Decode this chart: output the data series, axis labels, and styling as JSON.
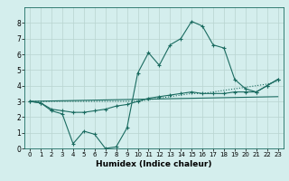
{
  "title": "",
  "xlabel": "Humidex (Indice chaleur)",
  "xlim": [
    -0.5,
    23.5
  ],
  "ylim": [
    0,
    9
  ],
  "xticks": [
    0,
    1,
    2,
    3,
    4,
    5,
    6,
    7,
    8,
    9,
    10,
    11,
    12,
    13,
    14,
    15,
    16,
    17,
    18,
    19,
    20,
    21,
    22,
    23
  ],
  "yticks": [
    0,
    1,
    2,
    3,
    4,
    5,
    6,
    7,
    8
  ],
  "bg_color": "#d4eeed",
  "grid_color": "#b8d4d0",
  "line_color": "#1a6b60",
  "line1_x": [
    0,
    1,
    2,
    3,
    4,
    5,
    6,
    7,
    8,
    9,
    10,
    11,
    12,
    13,
    14,
    15,
    16,
    17,
    18,
    19,
    20,
    21,
    22,
    23
  ],
  "line1_y": [
    3.0,
    2.9,
    2.4,
    2.2,
    0.3,
    1.1,
    0.9,
    0.0,
    0.1,
    1.3,
    4.8,
    6.1,
    5.3,
    6.6,
    7.0,
    8.1,
    7.8,
    6.6,
    6.4,
    4.4,
    3.8,
    3.6,
    4.0,
    4.4
  ],
  "line2_x": [
    0,
    23
  ],
  "line2_y": [
    3.0,
    3.3
  ],
  "line3_x": [
    0,
    1,
    2,
    3,
    4,
    5,
    6,
    7,
    8,
    9,
    10,
    11,
    12,
    13,
    14,
    15,
    16,
    17,
    18,
    19,
    20,
    21,
    22,
    23
  ],
  "line3_y": [
    3.0,
    2.9,
    2.5,
    2.4,
    2.3,
    2.3,
    2.4,
    2.5,
    2.7,
    2.8,
    3.0,
    3.2,
    3.3,
    3.4,
    3.5,
    3.6,
    3.5,
    3.5,
    3.5,
    3.6,
    3.6,
    3.6,
    4.0,
    4.4
  ],
  "line4_x": [
    0,
    1,
    2,
    3,
    4,
    5,
    6,
    7,
    8,
    9,
    10,
    11,
    12,
    13,
    14,
    15,
    16,
    17,
    18,
    19,
    20,
    21,
    22,
    23
  ],
  "line4_y": [
    3.0,
    3.0,
    3.0,
    3.0,
    3.0,
    3.0,
    3.0,
    3.0,
    3.0,
    3.0,
    3.0,
    3.1,
    3.2,
    3.3,
    3.4,
    3.5,
    3.5,
    3.6,
    3.7,
    3.8,
    3.9,
    4.0,
    4.1,
    4.3
  ]
}
